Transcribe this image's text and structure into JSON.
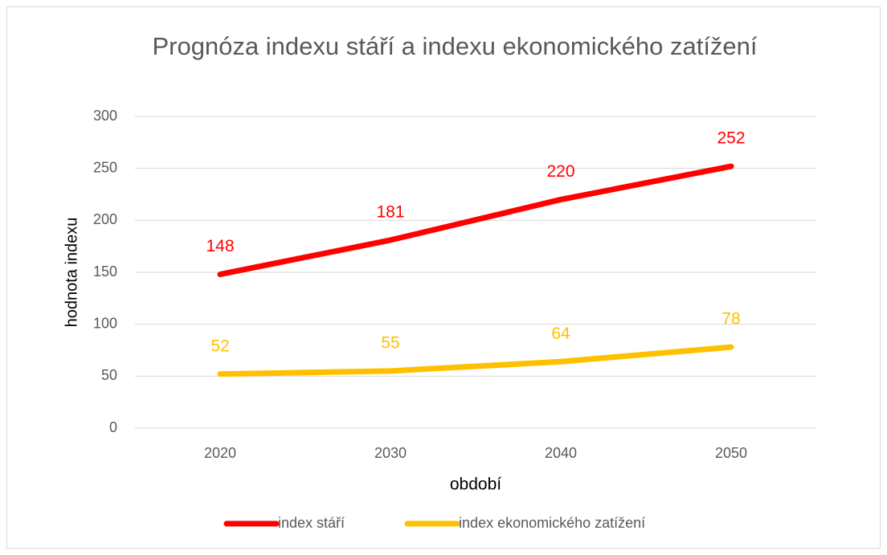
{
  "chart_data": {
    "type": "line",
    "title": "Prognóza indexu stáří a indexu ekonomického zatížení",
    "x_label": "období",
    "y_label": "hodnota indexu",
    "categories": [
      "2020",
      "2030",
      "2040",
      "2050"
    ],
    "series": [
      {
        "name": "index stáří",
        "color": "#ff0000",
        "values": [
          148,
          181,
          220,
          252
        ]
      },
      {
        "name": "index ekonomického zatížení",
        "color": "#ffc000",
        "values": [
          52,
          55,
          64,
          78
        ]
      }
    ],
    "ylim": [
      0,
      300
    ],
    "yticks": [
      0,
      50,
      100,
      150,
      200,
      250,
      300
    ],
    "grid": true,
    "legend": "bottom"
  }
}
